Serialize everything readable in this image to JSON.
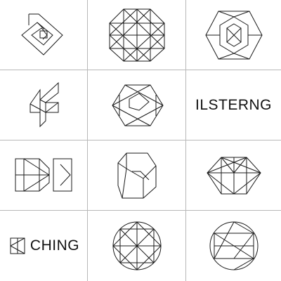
{
  "colors": {
    "background": "#ffffff",
    "stroke": "#1a1a1a",
    "grid_line": "#b8b8b8"
  },
  "cells": [
    {
      "name": "spiral-diamond-icon"
    },
    {
      "name": "octagon-lattice-icon"
    },
    {
      "name": "hexagon-cube-icon"
    },
    {
      "name": "angular-glyph-icon"
    },
    {
      "name": "hexagon-fold-icon"
    },
    {
      "name": "wordmark",
      "text": "ILSTERNG"
    },
    {
      "name": "bracket-pair-icon"
    },
    {
      "name": "cube-k-icon"
    },
    {
      "name": "crystal-diamond-icon"
    },
    {
      "name": "ching-logo",
      "text": "CHING"
    },
    {
      "name": "circle-lattice-icon"
    },
    {
      "name": "circle-fold-icon"
    }
  ]
}
